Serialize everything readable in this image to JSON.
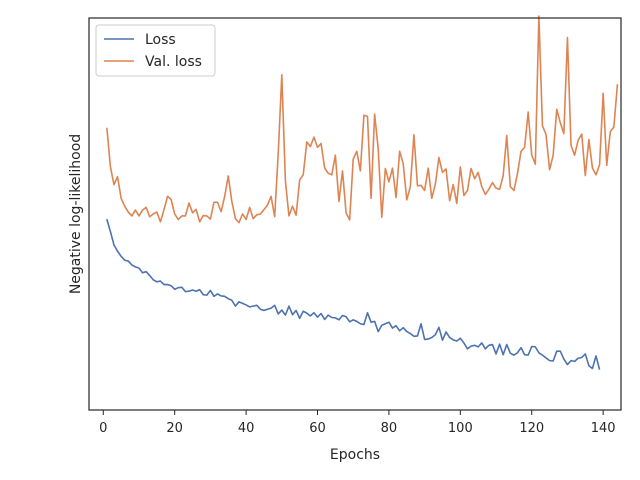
{
  "chart_data": {
    "type": "line",
    "title": "",
    "xlabel": "Epochs",
    "ylabel": "Negative log-likelihood",
    "xlim": [
      -4,
      145
    ],
    "ylim": [
      0.0,
      1.0
    ],
    "x_ticks": [
      0,
      20,
      40,
      60,
      80,
      100,
      120,
      140
    ],
    "y_ticks_shown": false,
    "grid": false,
    "legend_position": "top-left",
    "series": [
      {
        "name": "Loss",
        "color": "#4c72b0",
        "x_start": 1,
        "x_step": 1,
        "values": [
          0.487,
          0.455,
          0.421,
          0.405,
          0.392,
          0.382,
          0.38,
          0.37,
          0.365,
          0.362,
          0.35,
          0.353,
          0.343,
          0.332,
          0.327,
          0.329,
          0.32,
          0.32,
          0.317,
          0.308,
          0.312,
          0.313,
          0.302,
          0.303,
          0.306,
          0.303,
          0.307,
          0.294,
          0.293,
          0.305,
          0.29,
          0.296,
          0.291,
          0.29,
          0.284,
          0.28,
          0.265,
          0.276,
          0.272,
          0.268,
          0.263,
          0.265,
          0.267,
          0.257,
          0.254,
          0.257,
          0.26,
          0.267,
          0.245,
          0.255,
          0.242,
          0.265,
          0.243,
          0.254,
          0.234,
          0.252,
          0.247,
          0.24,
          0.248,
          0.237,
          0.246,
          0.231,
          0.242,
          0.236,
          0.235,
          0.23,
          0.241,
          0.238,
          0.225,
          0.23,
          0.226,
          0.22,
          0.218,
          0.248,
          0.224,
          0.226,
          0.2,
          0.216,
          0.22,
          0.224,
          0.209,
          0.215,
          0.202,
          0.21,
          0.2,
          0.195,
          0.188,
          0.189,
          0.22,
          0.18,
          0.181,
          0.185,
          0.192,
          0.211,
          0.178,
          0.199,
          0.185,
          0.179,
          0.176,
          0.183,
          0.171,
          0.156,
          0.163,
          0.165,
          0.161,
          0.171,
          0.156,
          0.165,
          0.167,
          0.143,
          0.168,
          0.141,
          0.167,
          0.145,
          0.14,
          0.146,
          0.159,
          0.141,
          0.14,
          0.162,
          0.161,
          0.146,
          0.14,
          0.133,
          0.126,
          0.125,
          0.15,
          0.15,
          0.13,
          0.116,
          0.126,
          0.124,
          0.132,
          0.134,
          0.143,
          0.113,
          0.106,
          0.138,
          0.103
        ],
        "legend_label": "Loss"
      },
      {
        "name": "Val. loss",
        "color": "#dd8452",
        "x_start": 1,
        "x_step": 1,
        "values": [
          0.72,
          0.62,
          0.575,
          0.595,
          0.54,
          0.52,
          0.505,
          0.495,
          0.51,
          0.495,
          0.51,
          0.517,
          0.493,
          0.5,
          0.505,
          0.48,
          0.511,
          0.545,
          0.537,
          0.5,
          0.486,
          0.495,
          0.495,
          0.528,
          0.503,
          0.512,
          0.48,
          0.496,
          0.495,
          0.487,
          0.53,
          0.53,
          0.506,
          0.545,
          0.597,
          0.532,
          0.488,
          0.478,
          0.5,
          0.486,
          0.517,
          0.488,
          0.498,
          0.5,
          0.511,
          0.523,
          0.545,
          0.493,
          0.655,
          0.855,
          0.585,
          0.495,
          0.52,
          0.497,
          0.587,
          0.6,
          0.684,
          0.672,
          0.696,
          0.67,
          0.68,
          0.617,
          0.604,
          0.6,
          0.65,
          0.532,
          0.61,
          0.503,
          0.485,
          0.64,
          0.66,
          0.61,
          0.752,
          0.749,
          0.54,
          0.755,
          0.666,
          0.492,
          0.616,
          0.582,
          0.617,
          0.542,
          0.66,
          0.628,
          0.536,
          0.57,
          0.702,
          0.572,
          0.573,
          0.56,
          0.617,
          0.54,
          0.576,
          0.644,
          0.606,
          0.615,
          0.534,
          0.575,
          0.527,
          0.62,
          0.547,
          0.56,
          0.616,
          0.59,
          0.606,
          0.57,
          0.55,
          0.563,
          0.58,
          0.566,
          0.563,
          0.597,
          0.7,
          0.57,
          0.56,
          0.603,
          0.66,
          0.67,
          0.76,
          0.65,
          0.627,
          1.005,
          0.725,
          0.703,
          0.613,
          0.65,
          0.767,
          0.733,
          0.705,
          0.95,
          0.675,
          0.65,
          0.688,
          0.704,
          0.598,
          0.69,
          0.617,
          0.6,
          0.626,
          0.808,
          0.624,
          0.71,
          0.722,
          0.831
        ],
        "legend_label": "Val. loss"
      }
    ]
  }
}
